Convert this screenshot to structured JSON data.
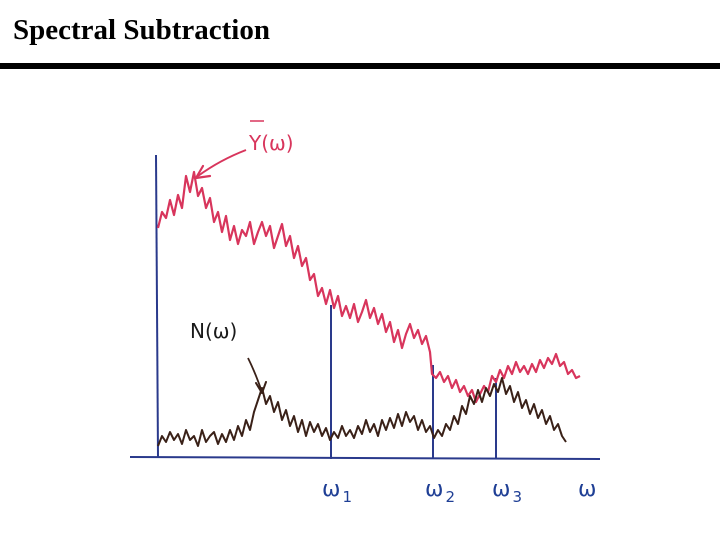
{
  "slide": {
    "title": "Spectral Subtraction"
  },
  "diagram": {
    "signal_label": "Y(ω)",
    "noise_label": "N(ω)",
    "axis_label": "ω",
    "markers": [
      {
        "symbol": "ω",
        "subscript": "1"
      },
      {
        "symbol": "ω",
        "subscript": "2"
      },
      {
        "symbol": "ω",
        "subscript": "3"
      }
    ],
    "colors": {
      "signal": "#d8355c",
      "noise": "#3a2118",
      "axes": "#2a3a8c",
      "marker_lines": "#2a3a8c",
      "labels": "#1f3f95",
      "title_rule": "#000000"
    }
  }
}
